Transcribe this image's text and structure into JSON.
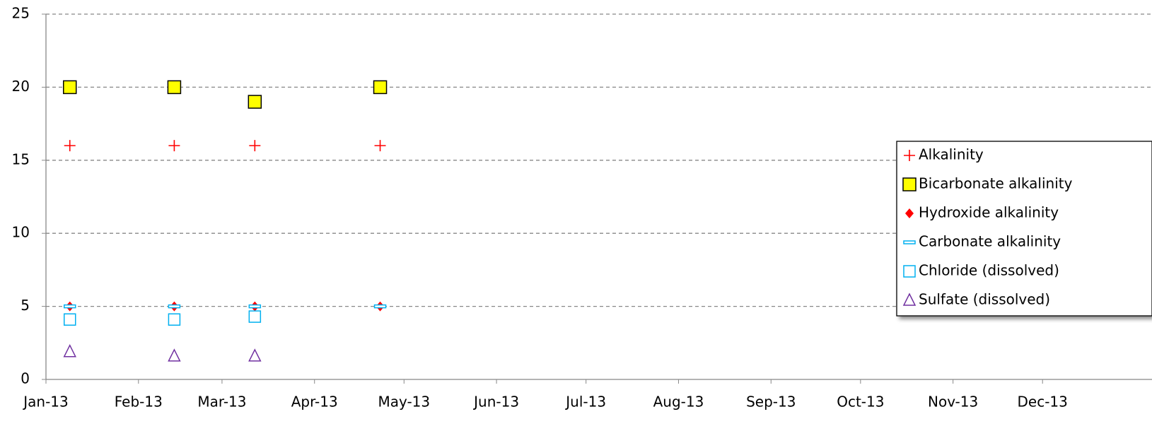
{
  "chart_data": {
    "type": "scatter",
    "x": [
      41283,
      41318,
      41345,
      41387
    ],
    "series": [
      {
        "name": "Alkalinity",
        "marker": "plus",
        "color": "#ff0000",
        "values": [
          16,
          16,
          16,
          16
        ]
      },
      {
        "name": "Bicarbonate alkalinity",
        "marker": "square",
        "color": "#ffff00",
        "values": [
          20,
          20,
          19,
          20
        ]
      },
      {
        "name": "Hydroxide alkalinity",
        "marker": "diamond",
        "color": "#ff0000",
        "values": [
          5,
          5,
          5,
          5
        ]
      },
      {
        "name": "Carbonate alkalinity",
        "marker": "dash",
        "color": "#00b0f0",
        "values": [
          5,
          5,
          5,
          5
        ]
      },
      {
        "name": "Chloride (dissolved)",
        "marker": "open-square",
        "color": "#00b0f0",
        "values": [
          4.1,
          4.1,
          4.3,
          null
        ]
      },
      {
        "name": "Sulfate (dissolved)",
        "marker": "triangle",
        "color": "#7030a0",
        "values": [
          1.9,
          1.6,
          1.6,
          null
        ]
      }
    ],
    "xlim": [
      41275,
      41640
    ],
    "xticks": [
      {
        "value": 41275,
        "label": "Jan-13"
      },
      {
        "value": 41306,
        "label": "Feb-13"
      },
      {
        "value": 41334,
        "label": "Mar-13"
      },
      {
        "value": 41365,
        "label": "Apr-13"
      },
      {
        "value": 41395,
        "label": "May-13"
      },
      {
        "value": 41426,
        "label": "Jun-13"
      },
      {
        "value": 41456,
        "label": "Jul-13"
      },
      {
        "value": 41487,
        "label": "Aug-13"
      },
      {
        "value": 41518,
        "label": "Sep-13"
      },
      {
        "value": 41548,
        "label": "Oct-13"
      },
      {
        "value": 41579,
        "label": "Nov-13"
      },
      {
        "value": 41609,
        "label": "Dec-13"
      }
    ],
    "ylim": [
      0,
      25
    ],
    "yticks": [
      0,
      5,
      10,
      15,
      20,
      25
    ],
    "grid": true,
    "legend": "right"
  }
}
